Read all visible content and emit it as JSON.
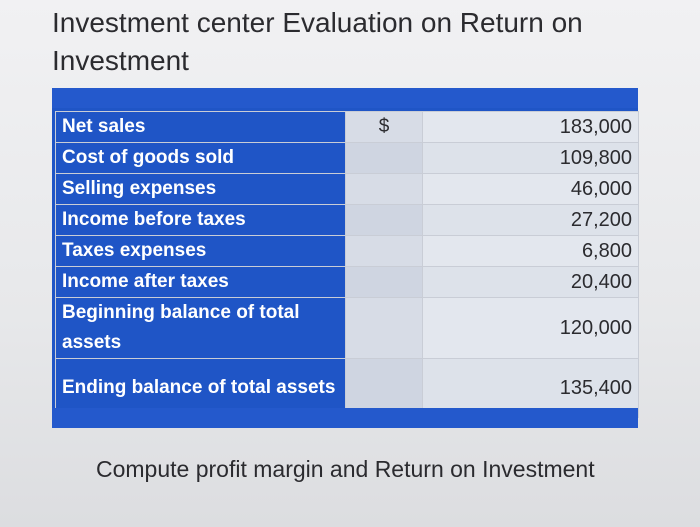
{
  "title": "Investment center Evaluation on Return on Investment",
  "currency_symbol": "$",
  "rows": [
    {
      "label": "Net sales",
      "value": "183,000"
    },
    {
      "label": "Cost of goods sold",
      "value": "109,800"
    },
    {
      "label": "Selling expenses",
      "value": "46,000"
    },
    {
      "label": "Income before taxes",
      "value": "27,200"
    },
    {
      "label": "Taxes expenses",
      "value": "6,800"
    },
    {
      "label": "Income after taxes",
      "value": "20,400"
    },
    {
      "label": "Beginning balance of total assets",
      "value": "120,000"
    },
    {
      "label": "Ending balance of total assets",
      "value": "135,400"
    }
  ],
  "instruction": "Compute profit margin and Return on Investment",
  "colors": {
    "header_blue": "#1f55c6",
    "cell_gray": "#e3e7ee",
    "text": "#2b2b2f"
  }
}
